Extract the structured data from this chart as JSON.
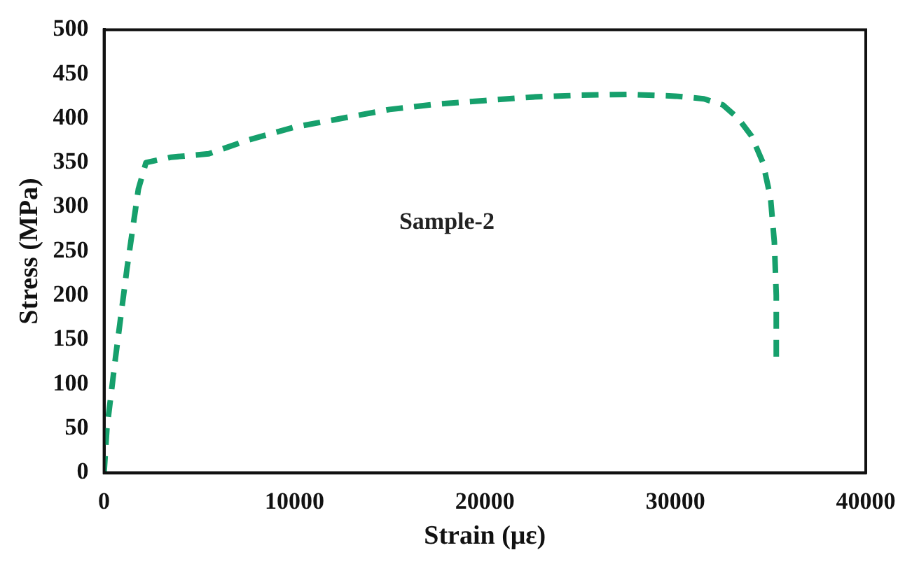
{
  "chart_data": {
    "type": "line",
    "xlabel": "Strain (με)",
    "ylabel": "Stress (MPa)",
    "xlim": [
      0,
      40000
    ],
    "xticks": [
      0,
      10000,
      20000,
      30000,
      40000
    ],
    "ylim": [
      0,
      500
    ],
    "yticks": [
      0,
      50,
      100,
      150,
      200,
      250,
      300,
      350,
      400,
      450,
      500
    ],
    "series": [
      {
        "name": "Sample-2",
        "color": "#16a06c",
        "x": [
          0,
          150,
          600,
          1200,
          1800,
          2200,
          3500,
          5500,
          7500,
          10000,
          12500,
          15000,
          17500,
          20000,
          22500,
          25000,
          27500,
          30000,
          31500,
          32500,
          33300,
          34000,
          34600,
          35000,
          35200,
          35300,
          35300
        ],
        "values": [
          0,
          50,
          130,
          230,
          320,
          350,
          356,
          360,
          375,
          390,
          400,
          410,
          416,
          420,
          424,
          426,
          427,
          425,
          422,
          415,
          400,
          380,
          350,
          310,
          260,
          200,
          125
        ]
      }
    ],
    "grid": false,
    "legend": false,
    "marker": "none",
    "line_style": "dashed"
  }
}
